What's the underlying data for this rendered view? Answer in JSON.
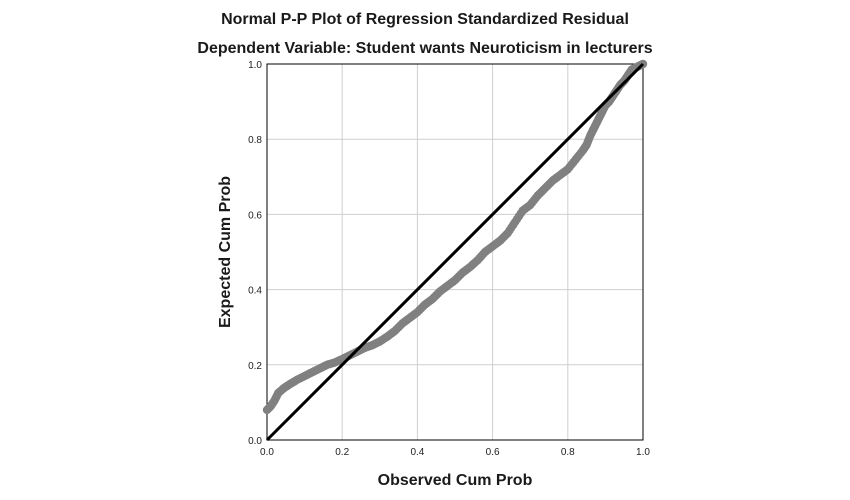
{
  "chart_data": {
    "type": "scatter",
    "title": "Normal P-P Plot of Regression Standardized Residual",
    "subtitle": "Dependent Variable: Student wants Neuroticism in lecturers",
    "xlabel": "Observed Cum Prob",
    "ylabel": "Expected Cum Prob",
    "xlim": [
      0.0,
      1.0
    ],
    "ylim": [
      0.0,
      1.0
    ],
    "xticks": [
      "0.0",
      "0.2",
      "0.4",
      "0.6",
      "0.8",
      "1.0"
    ],
    "yticks": [
      "0.0",
      "0.2",
      "0.4",
      "0.6",
      "0.8",
      "1.0"
    ],
    "grid": true,
    "reference_line": [
      [
        0.0,
        0.0
      ],
      [
        1.0,
        1.0
      ]
    ],
    "series_color": "#808080",
    "line_color": "#000000",
    "points": [
      [
        0.0,
        0.08
      ],
      [
        0.01,
        0.09
      ],
      [
        0.02,
        0.105
      ],
      [
        0.03,
        0.125
      ],
      [
        0.045,
        0.138
      ],
      [
        0.06,
        0.148
      ],
      [
        0.08,
        0.16
      ],
      [
        0.1,
        0.17
      ],
      [
        0.12,
        0.18
      ],
      [
        0.14,
        0.19
      ],
      [
        0.16,
        0.2
      ],
      [
        0.18,
        0.206
      ],
      [
        0.2,
        0.215
      ],
      [
        0.22,
        0.225
      ],
      [
        0.24,
        0.235
      ],
      [
        0.26,
        0.245
      ],
      [
        0.28,
        0.252
      ],
      [
        0.3,
        0.262
      ],
      [
        0.32,
        0.275
      ],
      [
        0.34,
        0.29
      ],
      [
        0.36,
        0.31
      ],
      [
        0.38,
        0.325
      ],
      [
        0.4,
        0.34
      ],
      [
        0.42,
        0.36
      ],
      [
        0.44,
        0.375
      ],
      [
        0.46,
        0.395
      ],
      [
        0.48,
        0.41
      ],
      [
        0.5,
        0.425
      ],
      [
        0.52,
        0.445
      ],
      [
        0.54,
        0.46
      ],
      [
        0.56,
        0.478
      ],
      [
        0.58,
        0.5
      ],
      [
        0.6,
        0.515
      ],
      [
        0.62,
        0.53
      ],
      [
        0.64,
        0.55
      ],
      [
        0.66,
        0.58
      ],
      [
        0.68,
        0.61
      ],
      [
        0.7,
        0.625
      ],
      [
        0.72,
        0.65
      ],
      [
        0.74,
        0.67
      ],
      [
        0.76,
        0.69
      ],
      [
        0.78,
        0.705
      ],
      [
        0.8,
        0.72
      ],
      [
        0.82,
        0.745
      ],
      [
        0.84,
        0.77
      ],
      [
        0.85,
        0.785
      ],
      [
        0.86,
        0.81
      ],
      [
        0.87,
        0.83
      ],
      [
        0.88,
        0.85
      ],
      [
        0.89,
        0.87
      ],
      [
        0.9,
        0.89
      ],
      [
        0.91,
        0.9
      ],
      [
        0.92,
        0.915
      ],
      [
        0.93,
        0.93
      ],
      [
        0.94,
        0.945
      ],
      [
        0.95,
        0.955
      ],
      [
        0.96,
        0.97
      ],
      [
        0.97,
        0.985
      ],
      [
        0.98,
        0.99
      ],
      [
        0.99,
        0.995
      ],
      [
        1.0,
        1.0
      ]
    ]
  }
}
